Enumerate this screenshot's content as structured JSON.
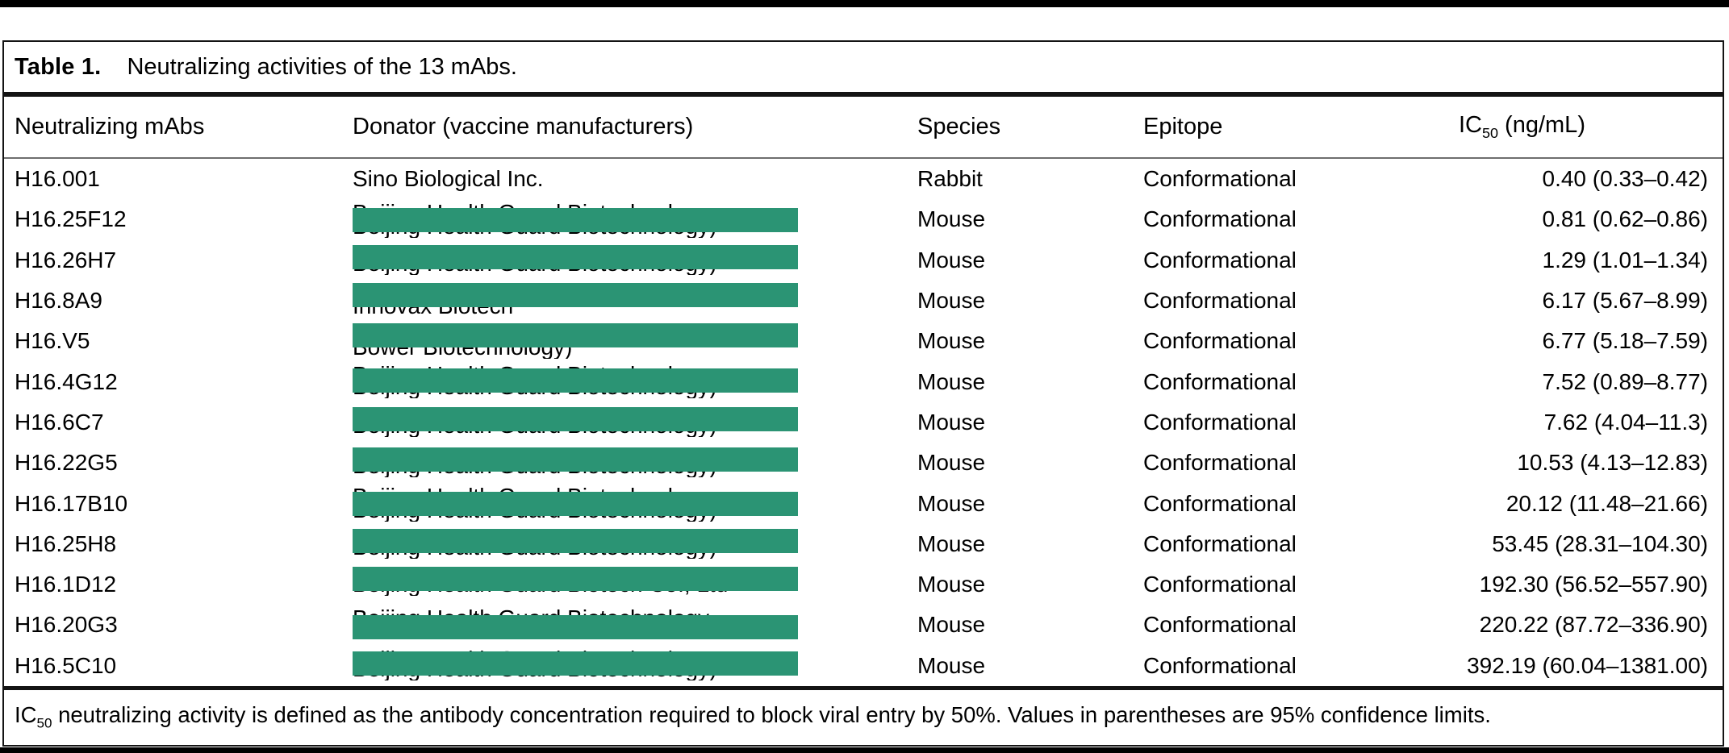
{
  "page": {
    "background": "#ffffff",
    "top_strip_color": "#000000",
    "bottom_strip_color": "#000000",
    "redaction_color": "#2B9474"
  },
  "table": {
    "label": "Table 1.",
    "caption": "Neutralizing activities of the 13 mAbs.",
    "columns": {
      "mabs": "Neutralizing mAbs",
      "donator": "Donator (vaccine manufacturers)",
      "species": "Species",
      "epitope": "Epitope",
      "ic50_prefix": "IC",
      "ic50_sub": "50",
      "ic50_suffix": " (ng/mL)"
    },
    "rows": [
      {
        "mab": "H16.001",
        "species": "Rabbit",
        "epitope": "Conformational",
        "ic50": "0.40 (0.33–0.42)",
        "donator": {
          "type": "text",
          "text": "Sino Biological Inc."
        }
      },
      {
        "mab": "H16.25F12",
        "species": "Mouse",
        "epitope": "Conformational",
        "ic50": "0.81 (0.62–0.86)",
        "donator": {
          "type": "redacted",
          "top": "Beijing Health Guard Biotechnology",
          "top_reveal": 8,
          "bottom": "Beijing Health Guard Biotechnology)",
          "bottom_reveal": 7
        }
      },
      {
        "mab": "H16.26H7",
        "species": "Mouse",
        "epitope": "Conformational",
        "ic50": "1.29 (1.01–1.34)",
        "donator": {
          "type": "redacted",
          "top": "Beijing Health Guard Biotechnology",
          "top_reveal": 3,
          "bottom": "Beijing Health Guard Biotechnology)",
          "bottom_reveal": 7
        }
      },
      {
        "mab": "H16.8A9",
        "species": "Mouse",
        "epitope": "Conformational",
        "ic50": "6.17 (5.67–8.99)",
        "donator": {
          "type": "redacted",
          "top": "",
          "top_reveal": 0,
          "bottom": "Innovax Biotech",
          "bottom_reveal": 13
        }
      },
      {
        "mab": "H16.V5",
        "species": "Mouse",
        "epitope": "Conformational",
        "ic50": "6.77 (5.18–7.59)",
        "donator": {
          "type": "redacted",
          "top": "",
          "top_reveal": 0,
          "bottom": "Bower Biotechnology)",
          "bottom_reveal": 14
        }
      },
      {
        "mab": "H16.4G12",
        "species": "Mouse",
        "epitope": "Conformational",
        "ic50": "7.52 (0.89–8.77)",
        "donator": {
          "type": "redacted",
          "top": "Beijing Health Guard Biotechnology",
          "top_reveal": 6,
          "bottom": "Beijing Health Guard Biotechnology)",
          "bottom_reveal": 7
        }
      },
      {
        "mab": "H16.6C7",
        "species": "Mouse",
        "epitope": "Conformational",
        "ic50": "7.62 (4.04–11.3)",
        "donator": {
          "type": "redacted",
          "top": "Beijing Health Guard Biotechnology",
          "top_reveal": 3,
          "bottom": "Beijing Health Guard Biotechnology)",
          "bottom_reveal": 7
        }
      },
      {
        "mab": "H16.22G5",
        "species": "Mouse",
        "epitope": "Conformational",
        "ic50": "10.53 (4.13–12.83)",
        "donator": {
          "type": "redacted",
          "top": "Beijing Health Guard Biotechnology",
          "top_reveal": 3,
          "bottom": "Beijing Health Guard Biotechnology)",
          "bottom_reveal": 7
        }
      },
      {
        "mab": "H16.17B10",
        "species": "Mouse",
        "epitope": "Conformational",
        "ic50": "20.12 (11.48–21.66)",
        "donator": {
          "type": "redacted",
          "top": "Beijing Health Guard Biotechnology",
          "top_reveal": 8,
          "bottom": "Beijing Health Guard Biotechnology)",
          "bottom_reveal": 7
        }
      },
      {
        "mab": "H16.25H8",
        "species": "Mouse",
        "epitope": "Conformational",
        "ic50": "53.45 (28.31–104.30)",
        "donator": {
          "type": "redacted",
          "top": "Beijing Health Guard Biotechnology",
          "top_reveal": 3,
          "bottom": "Beijing Health Guard Biotechnology)",
          "bottom_reveal": 7
        }
      },
      {
        "mab": "H16.1D12",
        "species": "Mouse",
        "epitope": "Conformational",
        "ic50": "192.30 (56.52–557.90)",
        "donator": {
          "type": "redacted",
          "top": "",
          "top_reveal": 0,
          "bottom": "Beijing Health Guard Biotech Co., Ltd",
          "bottom_reveal": 6
        }
      },
      {
        "mab": "H16.20G3",
        "species": "Mouse",
        "epitope": "Conformational",
        "ic50": "220.22 (87.72–336.90)",
        "donator": {
          "type": "redacted",
          "top": "Beijing Health Guard Biotechnology",
          "top_reveal": 10,
          "bottom": "",
          "bottom_reveal": 0
        }
      },
      {
        "mab": "H16.5C10",
        "species": "Mouse",
        "epitope": "Conformational",
        "ic50": "392.19 (60.04–1381.00)",
        "donator": {
          "type": "redacted",
          "top": "Beijing Health Guard Biotechnology",
          "top_reveal": 4,
          "bottom": "Beijing Health Guard Biotechnology)",
          "bottom_reveal": 6
        }
      }
    ]
  },
  "footnote": {
    "prefix": "IC",
    "sub": "50",
    "text": " neutralizing activity is defined as the antibody concentration required to block viral entry by 50%. Values in parentheses are 95% confidence limits."
  }
}
